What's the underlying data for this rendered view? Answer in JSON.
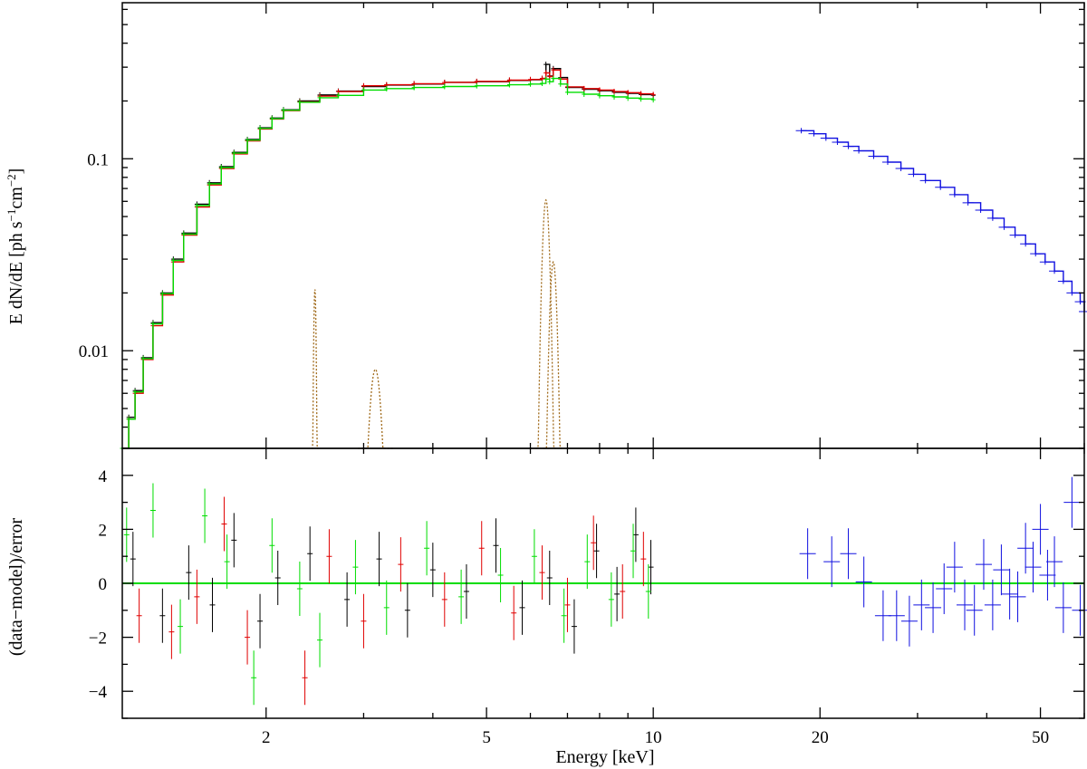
{
  "colors": {
    "frame": "#000000",
    "data_black": "#000000",
    "data_red": "#e00000",
    "data_green": "#00dd00",
    "data_blue": "#1010e0",
    "line_component": "#a06a1a",
    "zero_line": "#00dd00"
  },
  "xaxis": {
    "label": "Energy [keV]",
    "scale": "log",
    "range": [
      1.1,
      60
    ],
    "ticks": [
      2,
      5,
      10,
      20,
      50
    ],
    "tick_labels": [
      "2",
      "5",
      "10",
      "20",
      "50"
    ]
  },
  "chart_data": [
    {
      "type": "line",
      "panel": "top",
      "ylabel_main": "E dN/dE [ph s",
      "ylabel_sup1": "−1",
      "ylabel_mid": "cm",
      "ylabel_sup2": "−2",
      "ylabel_end": "]",
      "xscale": "log",
      "yscale": "log",
      "xlim": [
        1.1,
        60
      ],
      "ylim": [
        0.0031,
        0.65
      ],
      "y_ticks": [
        0.01,
        0.1
      ],
      "y_tick_labels": [
        "0.01",
        "0.1"
      ],
      "series": [
        {
          "color": "black",
          "x": [
            1.1,
            1.13,
            1.16,
            1.2,
            1.25,
            1.3,
            1.36,
            1.42,
            1.5,
            1.58,
            1.66,
            1.75,
            1.85,
            1.95,
            2.05,
            2.15,
            2.3,
            2.5,
            2.7,
            3.0,
            3.3,
            3.7,
            4.2,
            4.8,
            5.5,
            6.0,
            6.3,
            6.4,
            6.5,
            6.6,
            6.8,
            7.0,
            7.5,
            8.0,
            8.5,
            9.0,
            9.5,
            10.0
          ],
          "y": [
            0.0031,
            0.0045,
            0.0062,
            0.0092,
            0.014,
            0.02,
            0.03,
            0.041,
            0.058,
            0.075,
            0.091,
            0.108,
            0.126,
            0.145,
            0.163,
            0.18,
            0.2,
            0.215,
            0.225,
            0.238,
            0.242,
            0.245,
            0.25,
            0.252,
            0.256,
            0.258,
            0.262,
            0.31,
            0.27,
            0.295,
            0.265,
            0.235,
            0.23,
            0.226,
            0.222,
            0.219,
            0.216,
            0.214
          ]
        },
        {
          "color": "red",
          "x": [
            1.1,
            1.13,
            1.16,
            1.2,
            1.25,
            1.3,
            1.36,
            1.42,
            1.5,
            1.58,
            1.66,
            1.75,
            1.85,
            1.95,
            2.05,
            2.15,
            2.3,
            2.5,
            2.7,
            3.0,
            3.3,
            3.7,
            4.2,
            4.8,
            5.5,
            6.0,
            6.3,
            6.4,
            6.5,
            6.6,
            6.8,
            7.0,
            7.5,
            8.0,
            8.5,
            9.0,
            9.5,
            10.0
          ],
          "y": [
            0.0031,
            0.0044,
            0.006,
            0.009,
            0.0135,
            0.0195,
            0.029,
            0.04,
            0.056,
            0.073,
            0.089,
            0.106,
            0.124,
            0.143,
            0.161,
            0.178,
            0.198,
            0.212,
            0.224,
            0.24,
            0.243,
            0.246,
            0.25,
            0.253,
            0.257,
            0.259,
            0.262,
            0.28,
            0.268,
            0.29,
            0.26,
            0.237,
            0.232,
            0.228,
            0.224,
            0.221,
            0.218,
            0.216
          ]
        },
        {
          "color": "green",
          "x": [
            1.1,
            1.13,
            1.16,
            1.2,
            1.25,
            1.3,
            1.36,
            1.42,
            1.5,
            1.58,
            1.66,
            1.75,
            1.85,
            1.95,
            2.05,
            2.15,
            2.3,
            2.5,
            2.7,
            3.0,
            3.3,
            3.7,
            4.2,
            4.8,
            5.5,
            6.0,
            6.3,
            6.4,
            6.5,
            6.6,
            6.8,
            7.0,
            7.5,
            8.0,
            8.5,
            9.0,
            9.5,
            10.0
          ],
          "y": [
            0.0031,
            0.0044,
            0.0061,
            0.0091,
            0.0138,
            0.0198,
            0.0295,
            0.0405,
            0.057,
            0.074,
            0.09,
            0.107,
            0.125,
            0.144,
            0.162,
            0.179,
            0.197,
            0.208,
            0.214,
            0.228,
            0.232,
            0.235,
            0.238,
            0.24,
            0.243,
            0.245,
            0.247,
            0.26,
            0.252,
            0.262,
            0.245,
            0.222,
            0.217,
            0.213,
            0.21,
            0.207,
            0.205,
            0.203
          ]
        },
        {
          "color": "blue",
          "x": [
            18.5,
            19.5,
            20.5,
            21.5,
            22.5,
            23.5,
            25,
            26.5,
            28,
            29.5,
            31,
            33,
            35,
            37,
            39,
            41,
            43,
            45,
            47,
            49,
            51,
            53,
            55,
            57,
            59,
            60
          ],
          "y": [
            0.14,
            0.135,
            0.128,
            0.122,
            0.116,
            0.11,
            0.103,
            0.096,
            0.089,
            0.083,
            0.077,
            0.071,
            0.065,
            0.059,
            0.054,
            0.049,
            0.044,
            0.04,
            0.036,
            0.032,
            0.029,
            0.026,
            0.023,
            0.02,
            0.018,
            0.016
          ]
        }
      ],
      "line_components": [
        {
          "center": 2.45,
          "peak": 0.021
        },
        {
          "center": 3.15,
          "peak": 0.008
        },
        {
          "center": 6.4,
          "peak": 0.061
        },
        {
          "center": 6.6,
          "peak": 0.029
        }
      ]
    },
    {
      "type": "scatter",
      "panel": "bottom",
      "ylabel": "(data−model)/error",
      "xscale": "log",
      "xlim": [
        1.1,
        60
      ],
      "ylim": [
        -5,
        5
      ],
      "y_ticks": [
        -4,
        -2,
        0,
        2,
        4
      ],
      "y_tick_labels": [
        "−4",
        "−2",
        "0",
        "2",
        "4"
      ],
      "zero_line": 0,
      "series": [
        {
          "color": "black",
          "x": [
            1.15,
            1.3,
            1.45,
            1.6,
            1.75,
            1.95,
            2.1,
            2.4,
            2.8,
            3.2,
            3.6,
            4.0,
            4.6,
            5.2,
            5.8,
            6.5,
            7.2,
            7.9,
            8.6,
            9.3,
            9.9
          ],
          "y": [
            0.9,
            -1.2,
            0.4,
            -0.8,
            1.6,
            -1.4,
            0.2,
            1.1,
            -0.6,
            0.9,
            -1.0,
            0.5,
            -0.3,
            1.4,
            -0.9,
            0.2,
            -1.6,
            1.2,
            -0.4,
            1.8,
            0.6
          ]
        },
        {
          "color": "red",
          "x": [
            1.18,
            1.35,
            1.5,
            1.68,
            1.85,
            2.35,
            2.6,
            3.0,
            3.5,
            4.2,
            4.9,
            5.6,
            6.3,
            7.0,
            7.8,
            8.8,
            9.6
          ],
          "y": [
            -1.2,
            -1.8,
            -0.5,
            2.2,
            -2.0,
            -3.5,
            1.0,
            -1.4,
            0.7,
            -0.6,
            1.3,
            -1.1,
            0.4,
            -0.8,
            1.5,
            -0.3,
            0.9
          ]
        },
        {
          "color": "green",
          "x": [
            1.12,
            1.25,
            1.4,
            1.55,
            1.7,
            1.9,
            2.05,
            2.3,
            2.5,
            2.9,
            3.3,
            3.9,
            4.5,
            5.3,
            6.1,
            6.9,
            7.6,
            8.4,
            9.2,
            9.8
          ],
          "y": [
            1.8,
            2.7,
            -1.6,
            2.5,
            0.8,
            -3.5,
            1.4,
            -0.2,
            -2.1,
            0.6,
            -0.9,
            1.3,
            -0.5,
            0.3,
            1.0,
            -1.2,
            0.8,
            -0.6,
            1.2,
            -0.3
          ]
        },
        {
          "color": "blue",
          "x": [
            19,
            21,
            22.5,
            24,
            26,
            27.5,
            29,
            30.5,
            32,
            33.5,
            35,
            36.5,
            38,
            39.5,
            41,
            42.5,
            44,
            45.5,
            47,
            48.5,
            50,
            51.5,
            53,
            55,
            57,
            59
          ],
          "y": [
            1.1,
            0.8,
            1.1,
            0.05,
            -1.2,
            -1.2,
            -1.4,
            -0.8,
            -0.9,
            -0.2,
            0.6,
            -0.8,
            -1.0,
            0.7,
            -0.8,
            0.5,
            -0.4,
            -0.5,
            1.3,
            0.6,
            2.0,
            0.3,
            0.8,
            -0.9,
            3.0,
            -1.0
          ]
        }
      ]
    }
  ]
}
